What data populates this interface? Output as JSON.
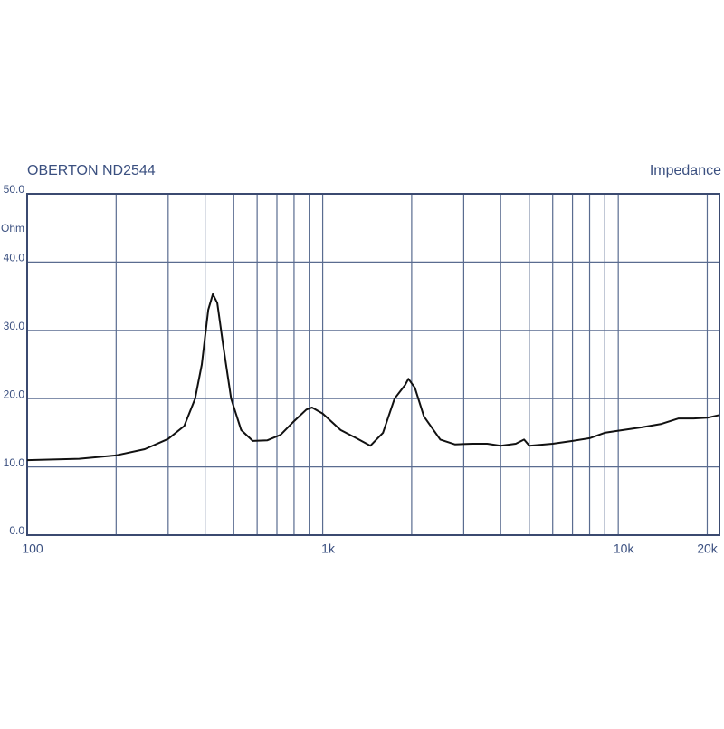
{
  "chart_data": {
    "type": "line",
    "title": "OBERTON ND2544",
    "subtitle": "Impedance",
    "y_unit": "Ohm",
    "x_scale": "log",
    "grid": true,
    "color": "#111111",
    "grid_color": "#5a6c90",
    "xlim": [
      100,
      22000
    ],
    "ylim": [
      0,
      50
    ],
    "xticks": [
      {
        "value": 100,
        "label": "100"
      },
      {
        "value": 1000,
        "label": "1k"
      },
      {
        "value": 10000,
        "label": "10k"
      },
      {
        "value": 20000,
        "label": "20k"
      }
    ],
    "minor_xticks": [
      200,
      300,
      400,
      500,
      600,
      700,
      800,
      900,
      2000,
      3000,
      4000,
      5000,
      6000,
      7000,
      8000,
      9000
    ],
    "yticks": [
      {
        "value": 0,
        "label": "0.0"
      },
      {
        "value": 10,
        "label": "10.0"
      },
      {
        "value": 20,
        "label": "20.0"
      },
      {
        "value": 30,
        "label": "30.0"
      },
      {
        "value": 40,
        "label": "40.0"
      },
      {
        "value": 50,
        "label": "50.0"
      }
    ],
    "x": [
      100,
      150,
      200,
      250,
      300,
      340,
      370,
      390,
      410,
      425,
      440,
      460,
      490,
      530,
      580,
      650,
      720,
      800,
      880,
      920,
      1000,
      1150,
      1300,
      1450,
      1600,
      1750,
      1900,
      1950,
      2050,
      2200,
      2500,
      2800,
      3200,
      3600,
      4000,
      4500,
      4800,
      5000,
      6000,
      7000,
      8000,
      9000,
      10000,
      12000,
      14000,
      16000,
      18000,
      20000,
      22000
    ],
    "values": [
      11.0,
      11.2,
      11.7,
      12.6,
      14.1,
      16,
      20,
      25,
      33,
      35.3,
      34,
      28,
      20,
      15.4,
      13.8,
      13.9,
      14.7,
      16.7,
      18.4,
      18.7,
      17.8,
      15.4,
      14.2,
      13.1,
      15,
      20,
      22,
      22.9,
      21.6,
      17.4,
      14,
      13.3,
      13.4,
      13.4,
      13.1,
      13.4,
      14,
      13.1,
      13.4,
      13.8,
      14.2,
      15,
      15.3,
      15.8,
      16.3,
      17.1,
      17.1,
      17.2,
      17.6
    ]
  }
}
